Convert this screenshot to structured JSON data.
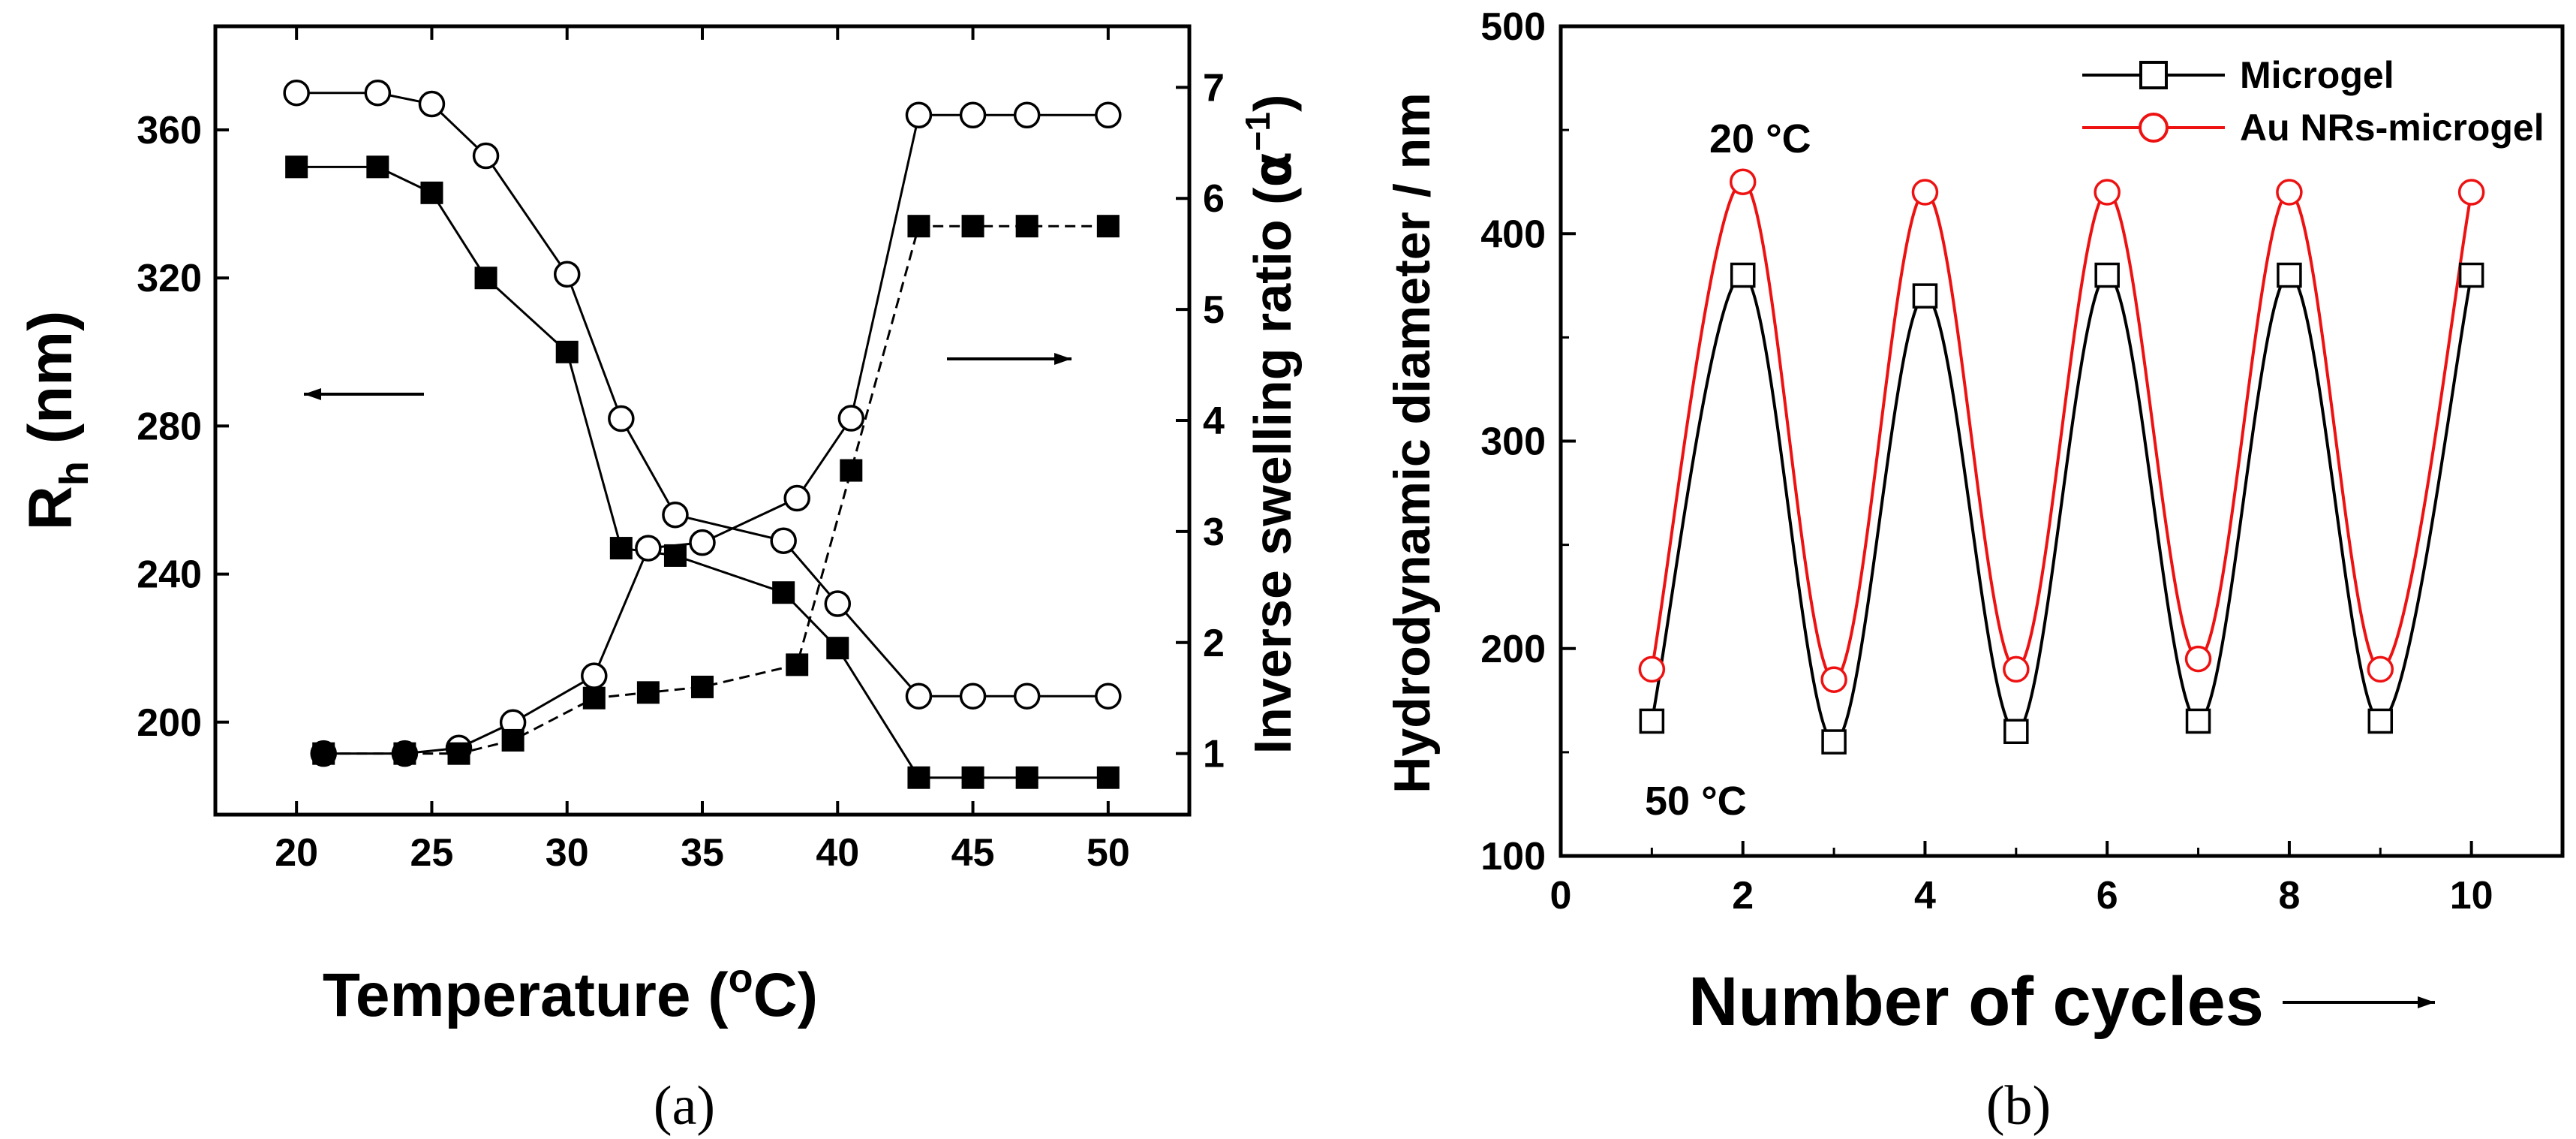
{
  "chart_data": [
    {
      "panel": "(a)",
      "type": "scatter",
      "xlabel": "Temperature (",
      "xlabel_super": "o",
      "xlabel_end": "C)",
      "ylabel_main": "R",
      "ylabel_sub": "h",
      "ylabel_unit": " (nm)",
      "ylabel_right": "Inverse swelling ratio (",
      "ylabel_right_sym": "α",
      "ylabel_right_sup": "−1",
      "ylabel_right_end": ")",
      "xlim": [
        17,
        53
      ],
      "ylim_left": [
        175,
        388
      ],
      "ylim_right": [
        0.45,
        7.55
      ],
      "xticks": [
        20,
        25,
        30,
        35,
        40,
        45,
        50
      ],
      "yticks_left": [
        200,
        240,
        280,
        320,
        360
      ],
      "yticks_right": [
        1,
        2,
        3,
        4,
        5,
        6,
        7
      ],
      "series": [
        {
          "name": "Rh open circles",
          "axis": "left",
          "marker": "circle-open",
          "x": [
            20,
            23,
            25,
            27,
            30,
            32,
            34,
            38,
            40,
            43,
            45,
            47,
            50
          ],
          "y": [
            370,
            370,
            367,
            353,
            321,
            282,
            256,
            249,
            232,
            207,
            207,
            207,
            207
          ]
        },
        {
          "name": "Rh filled squares",
          "axis": "left",
          "marker": "square-filled",
          "x": [
            20,
            23,
            25,
            27,
            30,
            32,
            34,
            38,
            40,
            43,
            45,
            47,
            50
          ],
          "y": [
            350,
            350,
            343,
            320,
            300,
            247,
            245,
            235,
            220,
            185,
            185,
            185,
            185
          ]
        },
        {
          "name": "Inverse swelling open circles",
          "axis": "right",
          "marker": "circle-open",
          "x": [
            21,
            24,
            26,
            28,
            31,
            33,
            35,
            38.5,
            40.5,
            43,
            45,
            47,
            50
          ],
          "y": [
            1.0,
            1.0,
            1.05,
            1.28,
            1.7,
            2.85,
            2.9,
            3.3,
            4.02,
            6.75,
            6.75,
            6.75,
            6.75
          ]
        },
        {
          "name": "Inverse swelling filled squares",
          "axis": "right",
          "marker": "square-filled",
          "dashed": true,
          "x": [
            21,
            24,
            26,
            28,
            31,
            33,
            35,
            38.5,
            40.5,
            43,
            45,
            47,
            50
          ],
          "y": [
            1.0,
            1.0,
            1.0,
            1.12,
            1.5,
            1.55,
            1.6,
            1.8,
            3.55,
            5.75,
            5.75,
            5.75,
            5.75
          ]
        }
      ],
      "annotations": [
        {
          "type": "arrow",
          "direction": "left",
          "meaning": "left axis"
        },
        {
          "type": "arrow",
          "direction": "right",
          "meaning": "right axis"
        }
      ]
    },
    {
      "panel": "(b)",
      "type": "line",
      "xlabel": "Number of cycles",
      "ylabel": "Hydrodynamic diameter / nm",
      "xlim": [
        0,
        11
      ],
      "ylim": [
        100,
        500
      ],
      "xticks": [
        0,
        2,
        4,
        6,
        8,
        10
      ],
      "yticks": [
        100,
        200,
        300,
        400,
        500
      ],
      "x": [
        1,
        2,
        3,
        4,
        5,
        6,
        7,
        8,
        9,
        10
      ],
      "series": [
        {
          "name": "Microgel",
          "color": "#000000",
          "marker": "square-open",
          "values": [
            165,
            380,
            155,
            370,
            160,
            380,
            165,
            380,
            165,
            380
          ]
        },
        {
          "name": "Au NRs-microgel",
          "color": "#ee1111",
          "marker": "circle-open",
          "values": [
            190,
            425,
            185,
            420,
            190,
            420,
            195,
            420,
            190,
            420
          ]
        }
      ],
      "annotations": [
        {
          "text": "20 °C",
          "near": "peaks"
        },
        {
          "text": "50 °C",
          "near": "valleys"
        }
      ]
    }
  ]
}
